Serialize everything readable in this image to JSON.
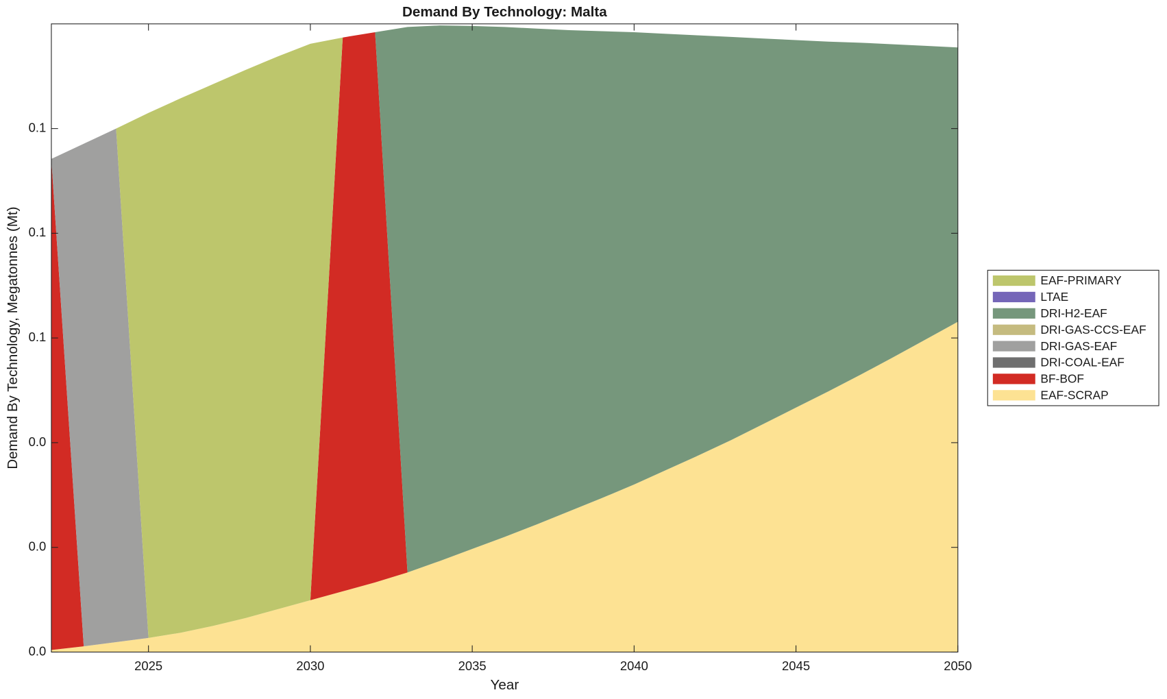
{
  "chart_data": {
    "type": "stacked-area",
    "title": "Demand By Technology: Malta",
    "xlabel": "Year",
    "ylabel": "Demand By Technology, Megatonnes (Mt)",
    "x": [
      2022,
      2023,
      2024,
      2025,
      2026,
      2027,
      2028,
      2029,
      2030,
      2031,
      2032,
      2033,
      2034,
      2035,
      2036,
      2037,
      2038,
      2039,
      2040,
      2041,
      2042,
      2043,
      2044,
      2045,
      2046,
      2047,
      2048,
      2049,
      2050
    ],
    "xlim": [
      2022,
      2050
    ],
    "xticks": [
      2025,
      2030,
      2035,
      2040,
      2045,
      2050
    ],
    "ylim": [
      0,
      0.12
    ],
    "yticks": [
      {
        "value": 0,
        "label": "0.0"
      },
      {
        "value": 0.02,
        "label": "0.0"
      },
      {
        "value": 0.04,
        "label": "0.0"
      },
      {
        "value": 0.06,
        "label": "0.1"
      },
      {
        "value": 0.08,
        "label": "0.1"
      },
      0.1
    ],
    "legend": "outside-right",
    "series": [
      {
        "name": "EAF-SCRAP",
        "color": "#fde293",
        "values": [
          0.0004,
          0.0011,
          0.0019,
          0.0027,
          0.0037,
          0.005,
          0.0065,
          0.0082,
          0.0099,
          0.0116,
          0.0133,
          0.0152,
          0.0174,
          0.0197,
          0.022,
          0.0244,
          0.0269,
          0.0294,
          0.032,
          0.0348,
          0.0376,
          0.0405,
          0.0436,
          0.0467,
          0.0498,
          0.053,
          0.0563,
          0.0597,
          0.0631
        ]
      },
      {
        "name": "BF-BOF",
        "color": "#d22b24",
        "values": [
          0.0938,
          0,
          0,
          0,
          0,
          0,
          0,
          0,
          0,
          0.1058,
          0.1051,
          0,
          0,
          0,
          0,
          0,
          0,
          0,
          0,
          0,
          0,
          0,
          0,
          0,
          0,
          0,
          0,
          0,
          0
        ]
      },
      {
        "name": "DRI-COAL-EAF",
        "color": "#6f6f6f",
        "values": [
          0,
          0,
          0,
          0,
          0,
          0,
          0,
          0,
          0,
          0,
          0,
          0,
          0,
          0,
          0,
          0,
          0,
          0,
          0,
          0,
          0,
          0,
          0,
          0,
          0,
          0,
          0,
          0,
          0
        ]
      },
      {
        "name": "DRI-GAS-EAF",
        "color": "#a0a09f",
        "values": [
          0,
          0.096,
          0.0981,
          0,
          0,
          0,
          0,
          0,
          0,
          0,
          0,
          0,
          0,
          0,
          0,
          0,
          0,
          0,
          0,
          0,
          0,
          0,
          0,
          0,
          0,
          0,
          0,
          0,
          0
        ]
      },
      {
        "name": "DRI-GAS-CCS-EAF",
        "color": "#c5bb7f",
        "values": [
          0,
          0,
          0,
          0,
          0,
          0,
          0,
          0,
          0,
          0,
          0,
          0,
          0,
          0,
          0,
          0,
          0,
          0,
          0,
          0,
          0,
          0,
          0,
          0,
          0,
          0,
          0,
          0,
          0
        ]
      },
      {
        "name": "DRI-H2-EAF",
        "color": "#76977c",
        "values": [
          0,
          0,
          0,
          0,
          0,
          0,
          0,
          0,
          0,
          0,
          0,
          0.1042,
          0.1023,
          0.0999,
          0.0974,
          0.0947,
          0.0919,
          0.0892,
          0.0864,
          0.0833,
          0.0802,
          0.077,
          0.0736,
          0.0702,
          0.0668,
          0.0634,
          0.0598,
          0.0561,
          0.0524
        ]
      },
      {
        "name": "LTAE",
        "color": "#7566b8",
        "values": [
          0,
          0,
          0,
          0,
          0,
          0,
          0,
          0,
          0,
          0,
          0,
          0,
          0,
          0,
          0,
          0,
          0,
          0,
          0,
          0,
          0,
          0,
          0,
          0,
          0,
          0,
          0,
          0,
          0
        ]
      },
      {
        "name": "EAF-PRIMARY",
        "color": "#bdc66c",
        "values": [
          0,
          0,
          0,
          0.1003,
          0.1021,
          0.1035,
          0.1047,
          0.1056,
          0.1063,
          0,
          0,
          0,
          0,
          0,
          0,
          0,
          0,
          0,
          0,
          0,
          0,
          0,
          0,
          0,
          0,
          0,
          0,
          0,
          0
        ]
      }
    ]
  }
}
